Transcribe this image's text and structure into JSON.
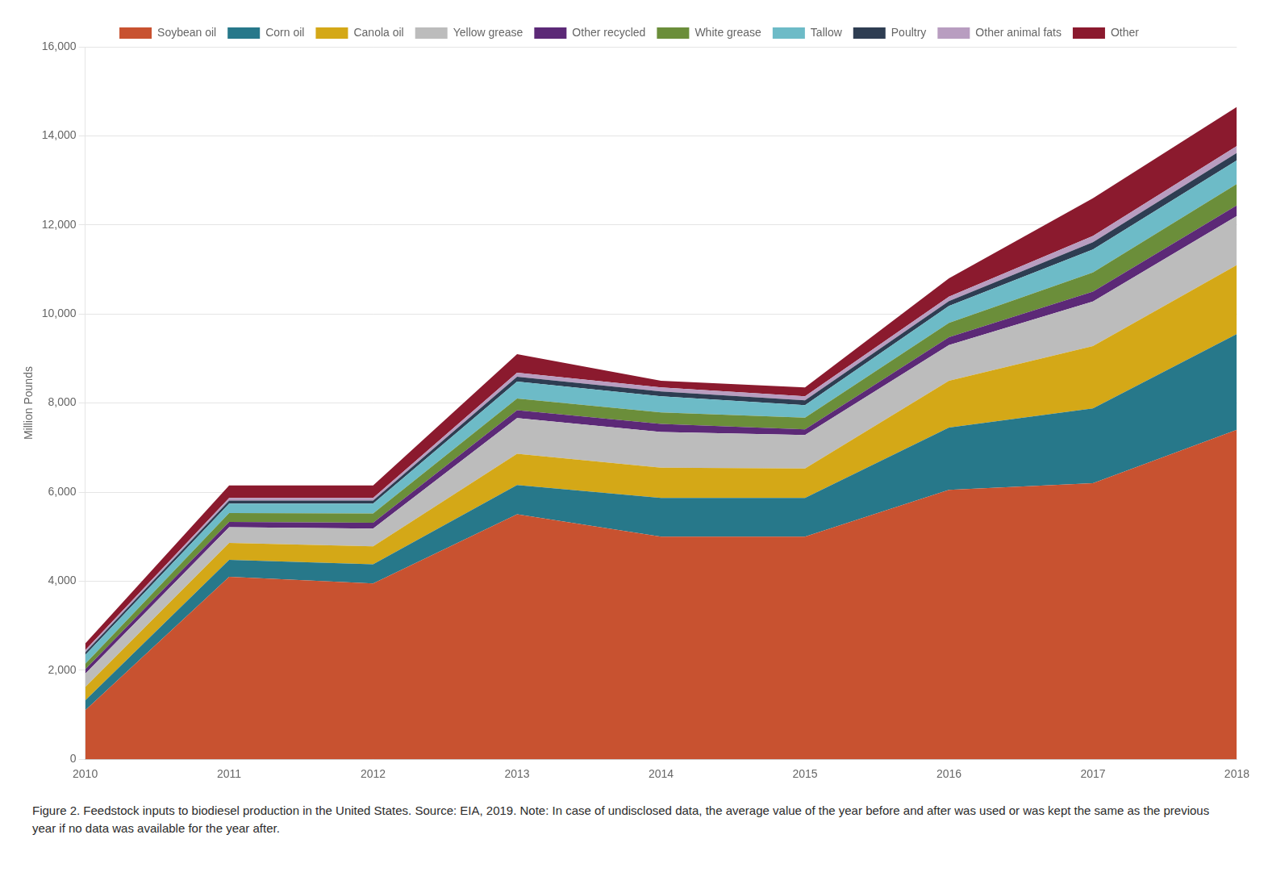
{
  "chart_data": {
    "type": "area",
    "stacked": true,
    "x": [
      2010,
      2011,
      2012,
      2013,
      2014,
      2015,
      2016,
      2017,
      2018
    ],
    "xlim": [
      2010,
      2018
    ],
    "xticks": [
      2010,
      2011,
      2012,
      2013,
      2014,
      2015,
      2016,
      2017,
      2018
    ],
    "series": [
      {
        "name": "Soybean oil",
        "color": "#C85230",
        "values": [
          1100,
          4100,
          3950,
          5500,
          5000,
          5000,
          6050,
          6200,
          7400
        ]
      },
      {
        "name": "Corn oil",
        "color": "#27788A",
        "values": [
          220,
          380,
          430,
          660,
          870,
          870,
          1400,
          1680,
          2150
        ]
      },
      {
        "name": "Canola oil",
        "color": "#D4A817",
        "values": [
          300,
          380,
          400,
          700,
          680,
          660,
          1050,
          1400,
          1550
        ]
      },
      {
        "name": "Yellow grease",
        "color": "#BCBCBC",
        "values": [
          300,
          350,
          400,
          800,
          800,
          750,
          800,
          1000,
          1100
        ]
      },
      {
        "name": "Other recycled",
        "color": "#5C2977",
        "values": [
          100,
          120,
          130,
          180,
          180,
          130,
          180,
          220,
          240
        ]
      },
      {
        "name": "White grease",
        "color": "#6B8E3A",
        "values": [
          120,
          200,
          210,
          260,
          260,
          260,
          320,
          430,
          480
        ]
      },
      {
        "name": "Tallow",
        "color": "#6DBBC7",
        "values": [
          200,
          210,
          220,
          380,
          360,
          280,
          380,
          520,
          530
        ]
      },
      {
        "name": "Poultry",
        "color": "#2E3D52",
        "values": [
          60,
          70,
          70,
          110,
          110,
          110,
          110,
          160,
          170
        ]
      },
      {
        "name": "Other animal fats",
        "color": "#B89DC0",
        "values": [
          50,
          60,
          60,
          90,
          90,
          90,
          100,
          140,
          150
        ]
      },
      {
        "name": "Other",
        "color": "#8B1A2E",
        "values": [
          150,
          280,
          280,
          420,
          150,
          200,
          410,
          850,
          880
        ]
      }
    ],
    "ylabel": "Million Pounds",
    "ylim": [
      0,
      16000
    ],
    "yticks": [
      0,
      {
        "value": 2000,
        "label": "2,000"
      },
      {
        "value": 4000,
        "label": "4,000"
      },
      {
        "value": 6000,
        "label": "6,000"
      },
      {
        "value": 8000,
        "label": "8,000"
      },
      {
        "value": 10000,
        "label": "10,000"
      },
      {
        "value": 12000,
        "label": "12,000"
      },
      {
        "value": 14000,
        "label": "14,000"
      },
      {
        "value": 16000,
        "label": "16,000"
      }
    ],
    "grid": true,
    "legend": "top",
    "caption": "Figure 2. Feedstock inputs to biodiesel production in the United States. Source: EIA, 2019. Note: In case of undisclosed data, the average value of the year before and after was used or was kept the same as the previous year if no data was available for the year after."
  }
}
